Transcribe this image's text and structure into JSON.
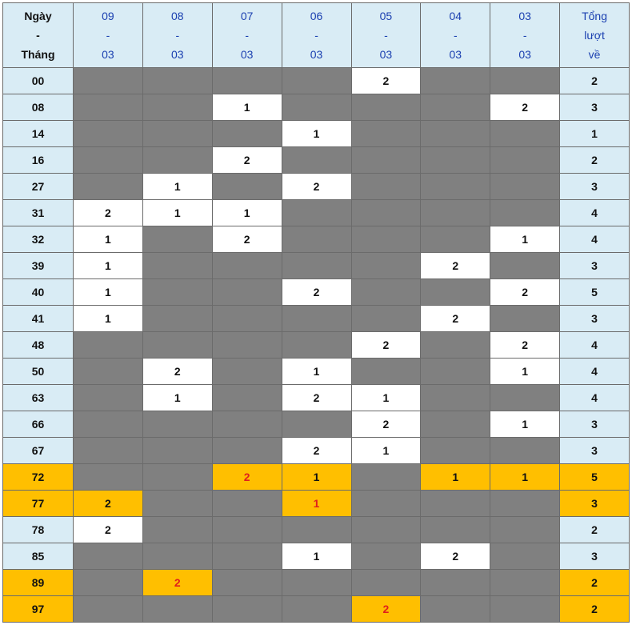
{
  "header": {
    "first": [
      "Ngày",
      "-",
      "Tháng"
    ],
    "dates": [
      [
        "09",
        "-",
        "03"
      ],
      [
        "08",
        "-",
        "03"
      ],
      [
        "07",
        "-",
        "03"
      ],
      [
        "06",
        "-",
        "03"
      ],
      [
        "05",
        "-",
        "03"
      ],
      [
        "04",
        "-",
        "03"
      ],
      [
        "03",
        "-",
        "03"
      ]
    ],
    "total": [
      "Tổng",
      "lượt",
      "về"
    ]
  },
  "colors": {
    "header_bg": "#d9ecf5",
    "empty": "#808080",
    "hit": "#ffffff",
    "highlight": "#ffbf00",
    "red_text": "#e0201c",
    "date_text": "#1a3fb0"
  },
  "rows": [
    {
      "num": "00",
      "cells": [
        null,
        null,
        null,
        null,
        "2",
        null,
        null
      ],
      "total": "2"
    },
    {
      "num": "08",
      "cells": [
        null,
        null,
        "1",
        null,
        null,
        null,
        "2"
      ],
      "total": "3"
    },
    {
      "num": "14",
      "cells": [
        null,
        null,
        null,
        "1",
        null,
        null,
        null
      ],
      "total": "1"
    },
    {
      "num": "16",
      "cells": [
        null,
        null,
        "2",
        null,
        null,
        null,
        null
      ],
      "total": "2"
    },
    {
      "num": "27",
      "cells": [
        null,
        "1",
        null,
        "2",
        null,
        null,
        null
      ],
      "total": "3"
    },
    {
      "num": "31",
      "cells": [
        "2",
        "1",
        "1",
        null,
        null,
        null,
        null
      ],
      "total": "4"
    },
    {
      "num": "32",
      "cells": [
        "1",
        null,
        "2",
        null,
        null,
        null,
        "1"
      ],
      "total": "4"
    },
    {
      "num": "39",
      "cells": [
        "1",
        null,
        null,
        null,
        null,
        "2",
        null
      ],
      "total": "3"
    },
    {
      "num": "40",
      "cells": [
        "1",
        null,
        null,
        "2",
        null,
        null,
        "2"
      ],
      "total": "5"
    },
    {
      "num": "41",
      "cells": [
        "1",
        null,
        null,
        null,
        null,
        "2",
        null
      ],
      "total": "3"
    },
    {
      "num": "48",
      "cells": [
        null,
        null,
        null,
        null,
        "2",
        null,
        "2"
      ],
      "total": "4"
    },
    {
      "num": "50",
      "cells": [
        null,
        "2",
        null,
        "1",
        null,
        null,
        "1"
      ],
      "total": "4"
    },
    {
      "num": "63",
      "cells": [
        null,
        "1",
        null,
        "2",
        "1",
        null,
        null
      ],
      "total": "4"
    },
    {
      "num": "66",
      "cells": [
        null,
        null,
        null,
        null,
        "2",
        null,
        "1"
      ],
      "total": "3"
    },
    {
      "num": "67",
      "cells": [
        null,
        null,
        null,
        "2",
        "1",
        null,
        null
      ],
      "total": "3"
    },
    {
      "num": "72",
      "highlight": true,
      "red": [
        2
      ],
      "cells": [
        null,
        null,
        "2",
        "1",
        null,
        "1",
        "1"
      ],
      "total": "5"
    },
    {
      "num": "77",
      "highlight": true,
      "red": [
        3
      ],
      "cells": [
        "2",
        null,
        null,
        "1",
        null,
        null,
        null
      ],
      "total": "3"
    },
    {
      "num": "78",
      "cells": [
        "2",
        null,
        null,
        null,
        null,
        null,
        null
      ],
      "total": "2"
    },
    {
      "num": "85",
      "cells": [
        null,
        null,
        null,
        "1",
        null,
        "2",
        null
      ],
      "total": "3"
    },
    {
      "num": "89",
      "highlight": true,
      "red": [
        1
      ],
      "cells": [
        null,
        "2",
        null,
        null,
        null,
        null,
        null
      ],
      "total": "2"
    },
    {
      "num": "97",
      "highlight": true,
      "red": [
        4
      ],
      "cells": [
        null,
        null,
        null,
        null,
        "2",
        null,
        null
      ],
      "total": "2"
    }
  ]
}
